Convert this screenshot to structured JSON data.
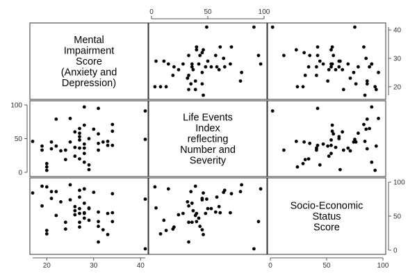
{
  "chart_data": {
    "type": "scatter",
    "subtype": "scatterplot-matrix",
    "variables": [
      {
        "id": "impair",
        "label_lines": [
          "Mental",
          "Impairment",
          "Score",
          "(Anxiety and",
          "Depression)"
        ],
        "range": [
          17,
          41
        ],
        "ticks": [
          20,
          30,
          40
        ],
        "tick_label_side": "right"
      },
      {
        "id": "life",
        "label_lines": [
          "Life Events",
          "Index",
          "reflecting",
          "Number and",
          "Severity"
        ],
        "range": [
          0,
          100
        ],
        "ticks": [
          0,
          50,
          100
        ],
        "tick_label_side": "top-left"
      },
      {
        "id": "ses",
        "label_lines": [
          "Socio-Economic",
          "Status",
          "Score"
        ],
        "range": [
          0,
          100
        ],
        "ticks": [
          0,
          50,
          100
        ],
        "tick_label_side": "bottom-right"
      }
    ],
    "points": [
      {
        "impair": 17,
        "life": 46,
        "ses": 84
      },
      {
        "impair": 19,
        "life": 39,
        "ses": 94
      },
      {
        "impair": 19,
        "life": 33,
        "ses": 65
      },
      {
        "impair": 20,
        "life": 13,
        "ses": 29
      },
      {
        "impair": 20,
        "life": 8,
        "ses": 24
      },
      {
        "impair": 20,
        "life": 3,
        "ses": 93
      },
      {
        "impair": 21,
        "life": 45,
        "ses": 76
      },
      {
        "impair": 21,
        "life": 35,
        "ses": 86
      },
      {
        "impair": 22,
        "life": 79,
        "ses": 86
      },
      {
        "impair": 22,
        "life": 39,
        "ses": 51
      },
      {
        "impair": 23,
        "life": 32,
        "ses": 71
      },
      {
        "impair": 24,
        "life": 33,
        "ses": 41
      },
      {
        "impair": 24,
        "life": 19,
        "ses": 31
      },
      {
        "impair": 25,
        "life": 80,
        "ses": 96
      },
      {
        "impair": 25,
        "life": 45,
        "ses": 74
      },
      {
        "impair": 26,
        "life": 60,
        "ses": 64
      },
      {
        "impair": 26,
        "life": 37,
        "ses": 58
      },
      {
        "impair": 26,
        "life": 24,
        "ses": 52
      },
      {
        "impair": 27,
        "life": 65,
        "ses": 88
      },
      {
        "impair": 27,
        "life": 58,
        "ses": 78
      },
      {
        "impair": 27,
        "life": 53,
        "ses": 61
      },
      {
        "impair": 27,
        "life": 48,
        "ses": 54
      },
      {
        "impair": 27,
        "life": 36,
        "ses": 41
      },
      {
        "impair": 27,
        "life": 20,
        "ses": 34
      },
      {
        "impair": 28,
        "life": 97,
        "ses": 90
      },
      {
        "impair": 28,
        "life": 70,
        "ses": 55
      },
      {
        "impair": 28,
        "life": 42,
        "ses": 47
      },
      {
        "impair": 28,
        "life": 36,
        "ses": 69
      },
      {
        "impair": 28,
        "life": 28,
        "ses": 54
      },
      {
        "impair": 28,
        "life": 15,
        "ses": 90
      },
      {
        "impair": 29,
        "life": 50,
        "ses": 61
      },
      {
        "impair": 29,
        "life": 11,
        "ses": 44
      },
      {
        "impair": 29,
        "life": 4,
        "ses": 62
      },
      {
        "impair": 30,
        "life": 64,
        "ses": 85
      },
      {
        "impair": 31,
        "life": 95,
        "ses": 42
      },
      {
        "impair": 31,
        "life": 57,
        "ses": 56
      },
      {
        "impair": 31,
        "life": 43,
        "ses": 35
      },
      {
        "impair": 31,
        "life": 33,
        "ses": 12
      },
      {
        "impair": 32,
        "life": 45,
        "ses": 30
      },
      {
        "impair": 33,
        "life": 46,
        "ses": 23
      },
      {
        "impair": 33,
        "life": 40,
        "ses": 54
      },
      {
        "impair": 34,
        "life": 71,
        "ses": 83
      },
      {
        "impair": 34,
        "life": 61,
        "ses": 55
      },
      {
        "impair": 34,
        "life": 40,
        "ses": 42
      },
      {
        "impair": 41,
        "life": 91,
        "ses": 2
      },
      {
        "impair": 41,
        "life": 49,
        "ses": 75
      }
    ],
    "grid": false,
    "legend": "none"
  }
}
